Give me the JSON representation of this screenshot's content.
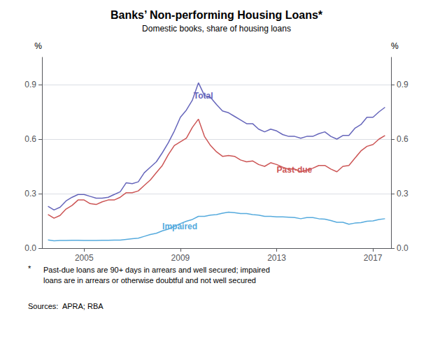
{
  "chart_data": {
    "type": "line",
    "title": "Banks’ Non-performing Housing Loans*",
    "subtitle": "Domestic books, share of housing loans",
    "y_label": "%",
    "y2_label": "%",
    "footnote_star": "*",
    "footnote": "Past-due loans are 90+ days in arrears and well secured; impaired\nloans are in arrears or otherwise doubtful and not well secured",
    "source": "Sources:  APRA; RBA",
    "grid": true,
    "xlim": [
      2003.25,
      2017.75
    ],
    "xticks": [
      2005,
      2009,
      2013,
      2017
    ],
    "ylim": [
      0.0,
      1.05
    ],
    "yticks": [
      {
        "value": 0.0,
        "label": "0.0"
      },
      0.3,
      0.6,
      0.9
    ],
    "y2lim": [
      0.0,
      1.05
    ],
    "y2ticks": [
      {
        "value": 0.0,
        "label": "0.0"
      },
      0.3,
      0.6,
      0.9
    ],
    "x": [
      2003.5,
      2003.75,
      2004.0,
      2004.25,
      2004.5,
      2004.75,
      2005.0,
      2005.25,
      2005.5,
      2005.75,
      2006.0,
      2006.25,
      2006.5,
      2006.75,
      2007.0,
      2007.25,
      2007.5,
      2007.75,
      2008.0,
      2008.25,
      2008.5,
      2008.75,
      2009.0,
      2009.25,
      2009.5,
      2009.75,
      2010.0,
      2010.25,
      2010.5,
      2010.75,
      2011.0,
      2011.25,
      2011.5,
      2011.75,
      2012.0,
      2012.25,
      2012.5,
      2012.75,
      2013.0,
      2013.25,
      2013.5,
      2013.75,
      2014.0,
      2014.25,
      2014.5,
      2014.75,
      2015.0,
      2015.25,
      2015.5,
      2015.75,
      2016.0,
      2016.25,
      2016.5,
      2016.75,
      2017.0,
      2017.25,
      2017.5
    ],
    "series": [
      {
        "name": "Total",
        "color": "#6666bb",
        "values": [
          0.23,
          0.21,
          0.225,
          0.26,
          0.28,
          0.295,
          0.295,
          0.285,
          0.275,
          0.275,
          0.28,
          0.295,
          0.31,
          0.36,
          0.355,
          0.365,
          0.415,
          0.445,
          0.475,
          0.525,
          0.58,
          0.645,
          0.72,
          0.76,
          0.815,
          0.91,
          0.84,
          0.83,
          0.79,
          0.755,
          0.745,
          0.725,
          0.705,
          0.685,
          0.685,
          0.655,
          0.64,
          0.655,
          0.645,
          0.625,
          0.615,
          0.615,
          0.605,
          0.615,
          0.615,
          0.63,
          0.64,
          0.615,
          0.6,
          0.62,
          0.62,
          0.66,
          0.68,
          0.72,
          0.72,
          0.75,
          0.775
        ]
      },
      {
        "name": "Past-due",
        "color": "#cc5555",
        "values": [
          0.185,
          0.165,
          0.18,
          0.215,
          0.235,
          0.265,
          0.265,
          0.245,
          0.24,
          0.255,
          0.265,
          0.265,
          0.28,
          0.305,
          0.305,
          0.315,
          0.345,
          0.375,
          0.415,
          0.455,
          0.515,
          0.565,
          0.585,
          0.605,
          0.665,
          0.71,
          0.615,
          0.565,
          0.53,
          0.505,
          0.51,
          0.505,
          0.485,
          0.475,
          0.48,
          0.46,
          0.45,
          0.47,
          0.46,
          0.445,
          0.435,
          0.435,
          0.42,
          0.43,
          0.44,
          0.455,
          0.455,
          0.435,
          0.42,
          0.45,
          0.455,
          0.495,
          0.535,
          0.56,
          0.57,
          0.6,
          0.62
        ]
      },
      {
        "name": "Impaired",
        "color": "#55aadd",
        "values": [
          0.045,
          0.04,
          0.042,
          0.042,
          0.043,
          0.043,
          0.042,
          0.042,
          0.042,
          0.043,
          0.043,
          0.044,
          0.044,
          0.048,
          0.052,
          0.055,
          0.065,
          0.075,
          0.082,
          0.095,
          0.105,
          0.12,
          0.135,
          0.148,
          0.158,
          0.175,
          0.175,
          0.182,
          0.185,
          0.192,
          0.198,
          0.195,
          0.19,
          0.19,
          0.185,
          0.182,
          0.175,
          0.175,
          0.172,
          0.172,
          0.17,
          0.168,
          0.162,
          0.168,
          0.168,
          0.162,
          0.16,
          0.152,
          0.142,
          0.142,
          0.132,
          0.138,
          0.14,
          0.148,
          0.15,
          0.158,
          0.162
        ]
      }
    ],
    "annotations": [
      {
        "text": "Total",
        "x": 2009.55,
        "y": 0.815,
        "color": "#6666bb"
      },
      {
        "text": "Past-due",
        "x": 2013.0,
        "y": 0.455,
        "color": "#cc5555"
      },
      {
        "text": "Impaired",
        "x": 2008.25,
        "y": 0.095,
        "color": "#55aadd"
      }
    ]
  }
}
